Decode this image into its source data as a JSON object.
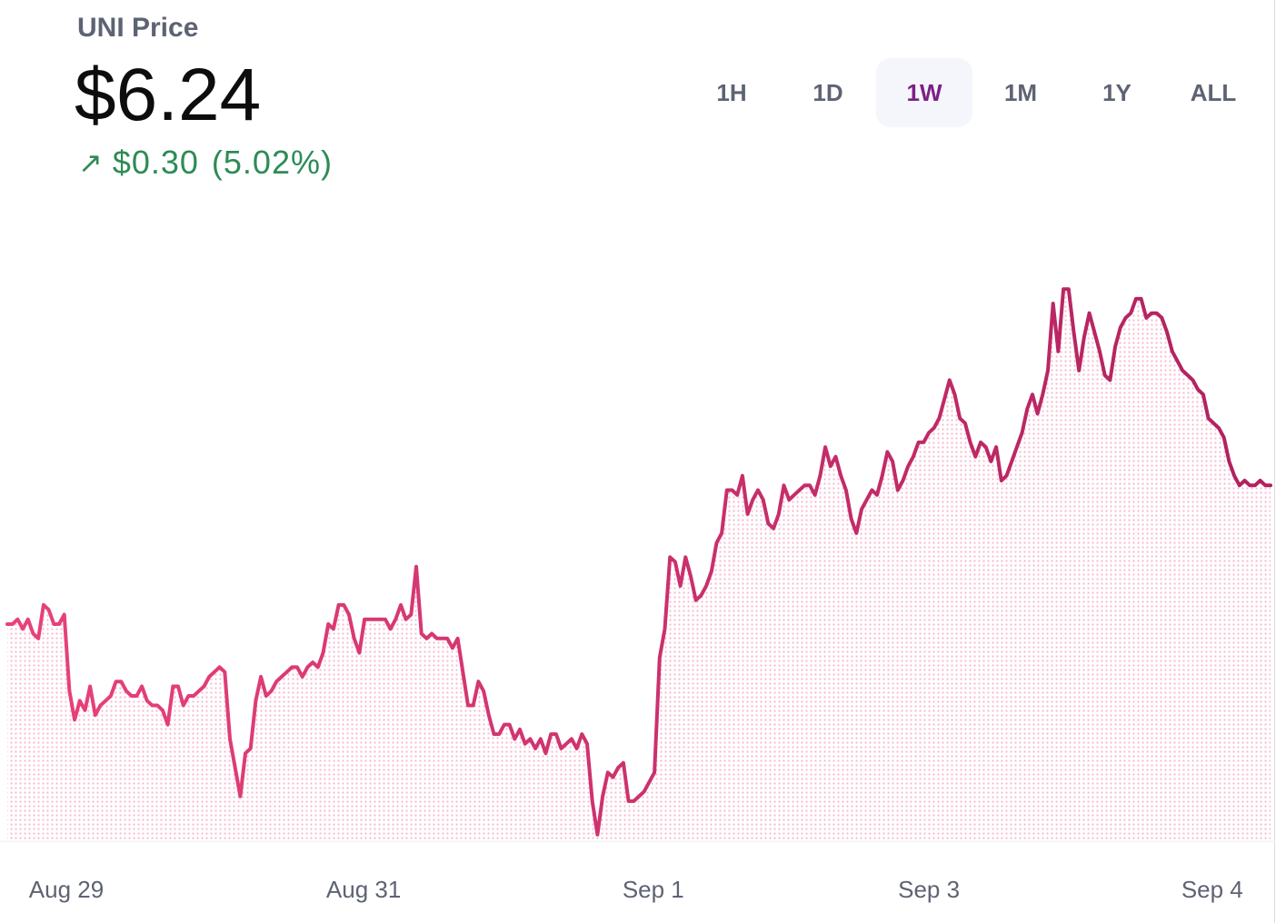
{
  "header": {
    "title": "UNI Price",
    "price": "$6.24",
    "change_arrow": "↗",
    "change": "$0.30",
    "change_pct": "(5.02%)"
  },
  "time_ranges": [
    {
      "label": "1H",
      "active": false
    },
    {
      "label": "1D",
      "active": false
    },
    {
      "label": "1W",
      "active": true
    },
    {
      "label": "1M",
      "active": false
    },
    {
      "label": "1Y",
      "active": false
    },
    {
      "label": "ALL",
      "active": false
    }
  ],
  "colors": {
    "line_start": "#e8427c",
    "line_end": "#b0215e",
    "fill_dots": "#f9b6cf",
    "positive": "#2e8b57",
    "active_range_text": "#7b2183",
    "active_range_bg": "#f5f5fc"
  },
  "chart_data": {
    "type": "area",
    "x_ticks": [
      "Aug 29",
      "Aug 31",
      "Sep 1",
      "Sep 3",
      "Sep 4"
    ],
    "x_tick_positions": [
      0.052,
      0.285,
      0.512,
      0.728,
      0.95
    ],
    "ylim": [
      5.5,
      6.7
    ],
    "values": [
      5.95,
      5.95,
      5.96,
      5.94,
      5.96,
      5.93,
      5.92,
      5.99,
      5.98,
      5.95,
      5.95,
      5.97,
      5.81,
      5.75,
      5.79,
      5.77,
      5.82,
      5.76,
      5.78,
      5.79,
      5.8,
      5.83,
      5.83,
      5.81,
      5.8,
      5.8,
      5.82,
      5.79,
      5.78,
      5.78,
      5.77,
      5.74,
      5.82,
      5.82,
      5.78,
      5.8,
      5.8,
      5.81,
      5.82,
      5.84,
      5.85,
      5.86,
      5.85,
      5.71,
      5.65,
      5.59,
      5.68,
      5.69,
      5.79,
      5.84,
      5.8,
      5.81,
      5.83,
      5.84,
      5.85,
      5.86,
      5.86,
      5.84,
      5.86,
      5.87,
      5.86,
      5.89,
      5.95,
      5.94,
      5.99,
      5.99,
      5.97,
      5.92,
      5.89,
      5.96,
      5.96,
      5.96,
      5.96,
      5.96,
      5.94,
      5.96,
      5.99,
      5.96,
      5.97,
      6.07,
      5.93,
      5.92,
      5.93,
      5.92,
      5.92,
      5.92,
      5.9,
      5.92,
      5.85,
      5.78,
      5.78,
      5.83,
      5.81,
      5.76,
      5.72,
      5.72,
      5.74,
      5.74,
      5.71,
      5.73,
      5.7,
      5.71,
      5.69,
      5.71,
      5.68,
      5.72,
      5.72,
      5.69,
      5.7,
      5.71,
      5.69,
      5.72,
      5.7,
      5.58,
      5.51,
      5.59,
      5.64,
      5.63,
      5.65,
      5.66,
      5.58,
      5.58,
      5.59,
      5.6,
      5.62,
      5.64,
      5.88,
      5.94,
      6.09,
      6.08,
      6.03,
      6.09,
      6.05,
      6.0,
      6.01,
      6.03,
      6.06,
      6.12,
      6.14,
      6.23,
      6.23,
      6.22,
      6.26,
      6.18,
      6.21,
      6.23,
      6.21,
      6.16,
      6.15,
      6.18,
      6.24,
      6.21,
      6.22,
      6.23,
      6.24,
      6.24,
      6.22,
      6.26,
      6.32,
      6.28,
      6.3,
      6.26,
      6.23,
      6.17,
      6.14,
      6.19,
      6.21,
      6.23,
      6.22,
      6.26,
      6.31,
      6.29,
      6.23,
      6.25,
      6.28,
      6.3,
      6.33,
      6.33,
      6.35,
      6.36,
      6.38,
      6.42,
      6.46,
      6.43,
      6.38,
      6.37,
      6.33,
      6.3,
      6.33,
      6.32,
      6.29,
      6.32,
      6.25,
      6.26,
      6.29,
      6.32,
      6.35,
      6.4,
      6.43,
      6.39,
      6.43,
      6.48,
      6.62,
      6.52,
      6.65,
      6.65,
      6.56,
      6.48,
      6.55,
      6.6,
      6.56,
      6.52,
      6.47,
      6.46,
      6.53,
      6.57,
      6.59,
      6.6,
      6.63,
      6.63,
      6.59,
      6.6,
      6.6,
      6.59,
      6.56,
      6.52,
      6.5,
      6.48,
      6.47,
      6.46,
      6.44,
      6.43,
      6.38,
      6.37,
      6.36,
      6.34,
      6.29,
      6.26,
      6.24,
      6.25,
      6.24,
      6.24,
      6.25,
      6.24,
      6.24
    ]
  }
}
